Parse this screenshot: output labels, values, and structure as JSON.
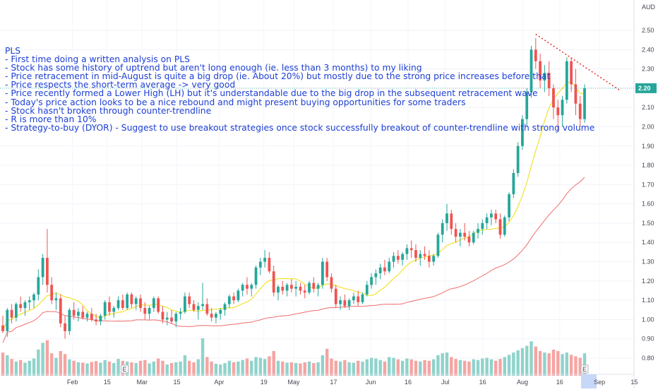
{
  "symbol": "PLS",
  "currency": "AUD",
  "last_price": "2.20",
  "annotation_lines": [
    "PLS",
    "- First time doing a written analysis on PLS",
    "- Stock has some history of uptrend but aren't long enough (ie. less than 3 months) to my liking",
    "- Price retracement in mid-August is quite a big drop (ie. About 20%) but mostly due to the strong price increases before that",
    "- Price respects the short-term average -> very good",
    "- Price recently formed a Lower High (LH) but it's understandable due to the big drop in the subsequent retracement wave",
    "- Today's price action looks to be a nice rebound and might present buying opportunities for some traders",
    "- Stock hasn't broken through counter-trendline",
    "- R is more than 10%",
    "- Strategy-to-buy (DYOR) - Suggest to use breakout strategies once stock successfully breakout of counter-trendline with strong volume"
  ],
  "earnings_marker": "E",
  "colors": {
    "up": "#26a69a",
    "down": "#ef5350",
    "vol_up": "#8fd3cb",
    "vol_down": "#f5a4a2",
    "short_ma": "#f2e330",
    "long_ma": "#ef6c6c",
    "trendline": "#e53935",
    "annotation": "#1d3fd4",
    "price_tag": "#26a69a"
  },
  "chart_data": {
    "type": "candlestick",
    "y_axis": {
      "unit": "AUD",
      "range": [
        0.72,
        2.52
      ],
      "ticks": [
        "0.80",
        "0.90",
        "1.00",
        "1.10",
        "1.20",
        "1.30",
        "1.40",
        "1.50",
        "1.60",
        "1.70",
        "1.80",
        "1.90",
        "2.00",
        "2.10",
        "2.20",
        "2.30",
        "2.40",
        "2.50"
      ]
    },
    "x_axis": {
      "tick_labels": [
        "Feb",
        "15",
        "Mar",
        "15",
        "Apr",
        "19",
        "May",
        "17",
        "Jun",
        "16",
        "Jul",
        "16",
        "Aug",
        "16",
        "Sep",
        "15"
      ],
      "tick_dates": [
        "2021-02-01",
        "2021-02-15",
        "2021-03-01",
        "2021-03-15",
        "2021-04-01",
        "2021-04-19",
        "2021-05-01",
        "2021-05-17",
        "2021-06-01",
        "2021-06-16",
        "2021-07-01",
        "2021-07-16",
        "2021-08-01",
        "2021-08-16",
        "2021-09-01",
        "2021-09-15"
      ]
    },
    "candles": [
      [
        0.97,
        1.02,
        0.93,
        0.94
      ],
      [
        0.94,
        1.06,
        0.91,
        1.05
      ],
      [
        1.05,
        1.08,
        0.98,
        1.01
      ],
      [
        1.01,
        1.09,
        0.99,
        1.08
      ],
      [
        1.08,
        1.12,
        1.04,
        1.06
      ],
      [
        1.06,
        1.1,
        1.02,
        1.09
      ],
      [
        1.09,
        1.12,
        1.05,
        1.1
      ],
      [
        1.1,
        1.14,
        1.06,
        1.13
      ],
      [
        1.13,
        1.26,
        1.1,
        1.22
      ],
      [
        1.22,
        1.34,
        1.18,
        1.32
      ],
      [
        1.32,
        1.47,
        1.14,
        1.18
      ],
      [
        1.18,
        1.22,
        1.08,
        1.1
      ],
      [
        1.1,
        1.14,
        1.05,
        1.11
      ],
      [
        1.11,
        1.13,
        0.96,
        0.98
      ],
      [
        0.98,
        1.02,
        0.9,
        0.94
      ],
      [
        0.94,
        1.06,
        0.92,
        1.05
      ],
      [
        1.05,
        1.09,
        1.0,
        1.02
      ],
      [
        1.02,
        1.06,
        0.99,
        1.04
      ],
      [
        1.04,
        1.07,
        1.0,
        1.01
      ],
      [
        1.01,
        1.04,
        0.99,
        1.03
      ],
      [
        1.03,
        1.06,
        0.99,
        1.0
      ],
      [
        1.0,
        1.03,
        0.97,
        0.99
      ],
      [
        0.99,
        1.03,
        0.97,
        1.02
      ],
      [
        1.02,
        1.1,
        1.0,
        1.09
      ],
      [
        1.09,
        1.12,
        1.02,
        1.04
      ],
      [
        1.04,
        1.07,
        1.01,
        1.06
      ],
      [
        1.06,
        1.12,
        1.05,
        1.1
      ],
      [
        1.1,
        1.13,
        1.05,
        1.06
      ],
      [
        1.06,
        1.14,
        1.05,
        1.13
      ],
      [
        1.13,
        1.14,
        1.06,
        1.08
      ],
      [
        1.08,
        1.12,
        1.05,
        1.11
      ],
      [
        1.11,
        1.13,
        1.04,
        1.06
      ],
      [
        1.06,
        1.09,
        1.0,
        1.03
      ],
      [
        1.03,
        1.07,
        1.0,
        1.06
      ],
      [
        1.06,
        1.12,
        1.04,
        1.11
      ],
      [
        1.11,
        1.12,
        1.03,
        1.04
      ],
      [
        1.04,
        1.07,
        0.98,
        1.0
      ],
      [
        1.0,
        1.04,
        0.97,
        1.01
      ],
      [
        1.01,
        1.05,
        0.98,
        0.99
      ],
      [
        0.99,
        1.04,
        0.96,
        1.03
      ],
      [
        1.03,
        1.06,
        1.0,
        1.04
      ],
      [
        1.04,
        1.14,
        1.03,
        1.12
      ],
      [
        1.12,
        1.14,
        1.06,
        1.08
      ],
      [
        1.08,
        1.1,
        1.04,
        1.05
      ],
      [
        1.05,
        1.09,
        1.0,
        1.07
      ],
      [
        1.07,
        1.19,
        1.05,
        1.08
      ],
      [
        1.08,
        1.11,
        1.02,
        1.03
      ],
      [
        1.03,
        1.06,
        0.99,
        1.01
      ],
      [
        1.01,
        1.04,
        0.98,
        1.03
      ],
      [
        1.03,
        1.06,
        1.0,
        1.05
      ],
      [
        1.05,
        1.09,
        1.02,
        1.08
      ],
      [
        1.08,
        1.13,
        1.06,
        1.12
      ],
      [
        1.12,
        1.14,
        1.08,
        1.1
      ],
      [
        1.1,
        1.16,
        1.09,
        1.15
      ],
      [
        1.15,
        1.19,
        1.12,
        1.18
      ],
      [
        1.18,
        1.22,
        1.13,
        1.16
      ],
      [
        1.16,
        1.19,
        1.12,
        1.18
      ],
      [
        1.18,
        1.28,
        1.16,
        1.27
      ],
      [
        1.27,
        1.32,
        1.23,
        1.3
      ],
      [
        1.3,
        1.36,
        1.27,
        1.32
      ],
      [
        1.32,
        1.35,
        1.24,
        1.25
      ],
      [
        1.25,
        1.28,
        1.12,
        1.14
      ],
      [
        1.14,
        1.18,
        1.1,
        1.17
      ],
      [
        1.17,
        1.2,
        1.13,
        1.15
      ],
      [
        1.15,
        1.19,
        1.12,
        1.18
      ],
      [
        1.18,
        1.21,
        1.14,
        1.16
      ],
      [
        1.16,
        1.2,
        1.12,
        1.17
      ],
      [
        1.17,
        1.19,
        1.13,
        1.15
      ],
      [
        1.15,
        1.18,
        1.11,
        1.14
      ],
      [
        1.14,
        1.2,
        1.13,
        1.19
      ],
      [
        1.19,
        1.22,
        1.14,
        1.16
      ],
      [
        1.16,
        1.19,
        1.12,
        1.18
      ],
      [
        1.18,
        1.32,
        1.16,
        1.3
      ],
      [
        1.3,
        1.32,
        1.2,
        1.22
      ],
      [
        1.22,
        1.24,
        1.14,
        1.16
      ],
      [
        1.16,
        1.18,
        1.06,
        1.08
      ],
      [
        1.08,
        1.12,
        1.05,
        1.1
      ],
      [
        1.1,
        1.13,
        1.06,
        1.07
      ],
      [
        1.07,
        1.11,
        1.05,
        1.1
      ],
      [
        1.1,
        1.14,
        1.08,
        1.12
      ],
      [
        1.12,
        1.15,
        1.07,
        1.09
      ],
      [
        1.09,
        1.14,
        1.08,
        1.13
      ],
      [
        1.13,
        1.2,
        1.12,
        1.18
      ],
      [
        1.18,
        1.24,
        1.16,
        1.22
      ],
      [
        1.22,
        1.26,
        1.18,
        1.24
      ],
      [
        1.24,
        1.29,
        1.21,
        1.27
      ],
      [
        1.27,
        1.31,
        1.23,
        1.25
      ],
      [
        1.25,
        1.32,
        1.24,
        1.3
      ],
      [
        1.3,
        1.35,
        1.27,
        1.33
      ],
      [
        1.33,
        1.36,
        1.29,
        1.31
      ],
      [
        1.31,
        1.35,
        1.28,
        1.34
      ],
      [
        1.34,
        1.39,
        1.31,
        1.37
      ],
      [
        1.37,
        1.41,
        1.32,
        1.36
      ],
      [
        1.36,
        1.39,
        1.3,
        1.32
      ],
      [
        1.32,
        1.36,
        1.28,
        1.34
      ],
      [
        1.34,
        1.38,
        1.31,
        1.33
      ],
      [
        1.33,
        1.36,
        1.27,
        1.3
      ],
      [
        1.3,
        1.34,
        1.28,
        1.33
      ],
      [
        1.33,
        1.45,
        1.32,
        1.44
      ],
      [
        1.44,
        1.52,
        1.4,
        1.5
      ],
      [
        1.5,
        1.6,
        1.46,
        1.55
      ],
      [
        1.55,
        1.57,
        1.44,
        1.47
      ],
      [
        1.47,
        1.5,
        1.4,
        1.43
      ],
      [
        1.43,
        1.47,
        1.38,
        1.45
      ],
      [
        1.45,
        1.5,
        1.41,
        1.43
      ],
      [
        1.43,
        1.46,
        1.38,
        1.4
      ],
      [
        1.4,
        1.46,
        1.39,
        1.45
      ],
      [
        1.45,
        1.5,
        1.42,
        1.47
      ],
      [
        1.47,
        1.52,
        1.44,
        1.5
      ],
      [
        1.5,
        1.55,
        1.47,
        1.53
      ],
      [
        1.53,
        1.57,
        1.49,
        1.55
      ],
      [
        1.55,
        1.57,
        1.5,
        1.52
      ],
      [
        1.52,
        1.55,
        1.42,
        1.44
      ],
      [
        1.44,
        1.54,
        1.43,
        1.53
      ],
      [
        1.53,
        1.66,
        1.51,
        1.65
      ],
      [
        1.65,
        1.78,
        1.63,
        1.76
      ],
      [
        1.76,
        1.92,
        1.74,
        1.9
      ],
      [
        1.9,
        2.06,
        1.88,
        2.04
      ],
      [
        2.04,
        2.2,
        2.0,
        2.18
      ],
      [
        2.18,
        2.42,
        2.15,
        2.4
      ],
      [
        2.4,
        2.46,
        2.3,
        2.34
      ],
      [
        2.34,
        2.38,
        2.2,
        2.24
      ],
      [
        2.24,
        2.32,
        2.18,
        2.28
      ],
      [
        2.28,
        2.34,
        2.16,
        2.2
      ],
      [
        2.2,
        2.22,
        2.04,
        2.1
      ],
      [
        2.1,
        2.14,
        1.98,
        2.06
      ],
      [
        2.06,
        2.16,
        2.0,
        2.14
      ],
      [
        2.14,
        2.36,
        2.12,
        2.34
      ],
      [
        2.34,
        2.36,
        2.18,
        2.22
      ],
      [
        2.22,
        2.3,
        2.06,
        2.12
      ],
      [
        2.12,
        2.16,
        2.0,
        2.04
      ],
      [
        2.04,
        2.22,
        2.02,
        2.2
      ]
    ],
    "volume": [
      0.62,
      0.55,
      0.45,
      0.38,
      0.42,
      0.35,
      0.4,
      0.46,
      0.7,
      0.88,
      0.95,
      0.6,
      0.48,
      0.66,
      0.58,
      0.44,
      0.4,
      0.36,
      0.35,
      0.33,
      0.37,
      0.39,
      0.35,
      0.42,
      0.38,
      0.34,
      0.45,
      0.4,
      0.38,
      0.36,
      0.34,
      0.4,
      0.42,
      0.33,
      0.38,
      0.46,
      0.4,
      0.3,
      0.34,
      0.36,
      0.38,
      0.55,
      0.4,
      0.36,
      0.44,
      1.0,
      0.5,
      0.38,
      0.32,
      0.3,
      0.34,
      0.4,
      0.36,
      0.38,
      0.42,
      0.46,
      0.4,
      0.5,
      0.48,
      0.45,
      0.52,
      0.66,
      0.4,
      0.38,
      0.35,
      0.36,
      0.34,
      0.33,
      0.36,
      0.38,
      0.34,
      0.36,
      0.55,
      0.72,
      0.46,
      0.4,
      0.38,
      0.42,
      0.36,
      0.35,
      0.4,
      0.38,
      0.44,
      0.48,
      0.46,
      0.42,
      0.38,
      0.5,
      0.48,
      0.44,
      0.4,
      0.46,
      0.44,
      0.4,
      0.38,
      0.42,
      0.4,
      0.44,
      0.55,
      0.6,
      0.62,
      0.5,
      0.45,
      0.42,
      0.4,
      0.38,
      0.44,
      0.42,
      0.46,
      0.48,
      0.44,
      0.4,
      0.45,
      0.5,
      0.56,
      0.62,
      0.68,
      0.74,
      0.8,
      0.92,
      0.78,
      0.66,
      0.62,
      0.6,
      0.7,
      0.66,
      0.58,
      0.62,
      0.56,
      0.52,
      0.48,
      0.6
    ],
    "moving_averages": [
      {
        "role": "short-term average",
        "values": []
      },
      {
        "role": "long-term average",
        "values": []
      }
    ],
    "counter_trendline": {
      "from": {
        "candle": 120,
        "value": 2.48
      },
      "to": {
        "candle": 143,
        "value": 2.2
      }
    },
    "earnings_markers": [
      "2021-02-22",
      "2021-08-26"
    ]
  }
}
